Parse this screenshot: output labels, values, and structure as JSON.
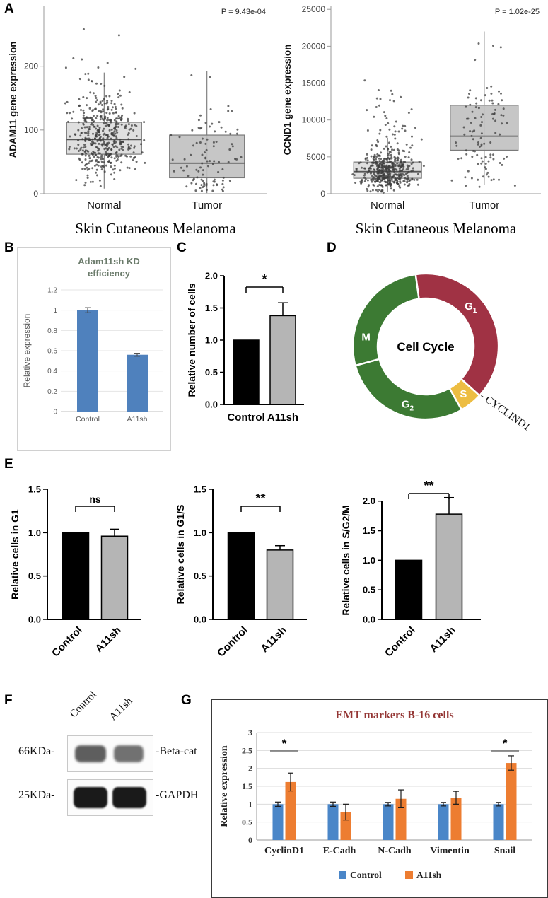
{
  "panel_letters": {
    "A": "A",
    "B": "B",
    "C": "C",
    "D": "D",
    "E": "E",
    "F": "F",
    "G": "G"
  },
  "chart_data": [
    {
      "panel": "A-left",
      "type": "boxplot",
      "ylabel": "ADAM11 gene expression",
      "xlabel": "Skin Cutaneous Melanoma",
      "pvalue": "P = 9.43e-04",
      "categories": [
        "Normal",
        "Tumor"
      ],
      "ylim": [
        0,
        295
      ],
      "yticks": [
        0,
        100,
        200
      ],
      "boxes": [
        {
          "group": "Normal",
          "q1": 62,
          "median": 85,
          "q3": 112,
          "whisker_low": 8,
          "whisker_high": 190,
          "point_min": 2,
          "point_max": 285,
          "n_points": 470
        },
        {
          "group": "Tumor",
          "q1": 25,
          "median": 48,
          "q3": 92,
          "whisker_low": 1,
          "whisker_high": 192,
          "point_min": 1,
          "point_max": 205,
          "n_points": 100
        }
      ]
    },
    {
      "panel": "A-right",
      "type": "boxplot",
      "ylabel": "CCND1 gene expression",
      "xlabel": "Skin Cutaneous Melanoma",
      "pvalue": "P = 1.02e-25",
      "categories": [
        "Normal",
        "Tumor"
      ],
      "ylim": [
        0,
        25500
      ],
      "yticks": [
        0,
        5000,
        10000,
        15000,
        20000,
        25000
      ],
      "boxes": [
        {
          "group": "Normal",
          "q1": 2100,
          "median": 3000,
          "q3": 4300,
          "whisker_low": 250,
          "whisker_high": 7600,
          "point_min": 150,
          "point_max": 17500,
          "n_points": 470
        },
        {
          "group": "Tumor",
          "q1": 5900,
          "median": 7800,
          "q3": 12000,
          "whisker_low": 1200,
          "whisker_high": 22000,
          "point_min": 900,
          "point_max": 22300,
          "n_points": 105
        }
      ]
    },
    {
      "panel": "B",
      "type": "bar",
      "title_lines": [
        "Adam11sh  KD",
        "efficiency"
      ],
      "title_color": "#6b7b6b",
      "ylabel": "Relative expression",
      "categories": [
        "Control",
        "A11sh"
      ],
      "values": [
        1.0,
        0.56
      ],
      "errors": [
        0.025,
        0.015
      ],
      "ylim": [
        0,
        1.2
      ],
      "yticks": [
        0,
        0.2,
        0.4,
        0.6,
        0.8,
        1,
        1.2
      ],
      "ytick_labels": [
        "0",
        "0.2",
        "0.4",
        "0.6",
        "0.8",
        "1",
        "1.2"
      ],
      "bar_color": "#4f81bd"
    },
    {
      "panel": "C",
      "type": "bar",
      "ylabel": "Relative number of cells",
      "categories": [
        "Control",
        "A11sh"
      ],
      "values": [
        1.0,
        1.38
      ],
      "errors": [
        0,
        0.2
      ],
      "ylim": [
        0,
        2.0
      ],
      "yticks": [
        0,
        0.5,
        1,
        1.5,
        2
      ],
      "ytick_labels": [
        "0.0",
        "0.5",
        "1.0",
        "1.5",
        "2.0"
      ],
      "bar_colors": [
        "#000000",
        "#b5b5b5"
      ],
      "significance": "*"
    },
    {
      "panel": "D",
      "type": "donut",
      "center_label": "Cell Cycle",
      "annotation": "- CYCLIND1",
      "segments": [
        {
          "label": "G1",
          "display": "G",
          "sub": "1",
          "value": 39,
          "color": "#a03244"
        },
        {
          "label": "S",
          "display": "S",
          "sub": "",
          "value": 5,
          "color": "#edbd42"
        },
        {
          "label": "G2",
          "display": "G",
          "sub": "2",
          "value": 29,
          "color": "#3c7a33"
        },
        {
          "label": "M",
          "display": "M",
          "sub": "",
          "value": 27,
          "color": "#3c7a33"
        }
      ]
    },
    {
      "panel": "E-1",
      "type": "bar",
      "ylabel": "Relative cells in G1",
      "categories": [
        "Control",
        "A11sh"
      ],
      "values": [
        1.0,
        0.96
      ],
      "errors": [
        0,
        0.08
      ],
      "ylim": [
        0,
        1.5
      ],
      "yticks": [
        0,
        0.5,
        1,
        1.5
      ],
      "ytick_labels": [
        "0.0",
        "0.5",
        "1.0",
        "1.5"
      ],
      "bar_colors": [
        "#000000",
        "#b5b5b5"
      ],
      "significance": "ns"
    },
    {
      "panel": "E-2",
      "type": "bar",
      "ylabel": "Relative cells in G1/S",
      "categories": [
        "Control",
        "A11sh"
      ],
      "values": [
        1.0,
        0.8
      ],
      "errors": [
        0,
        0.05
      ],
      "ylim": [
        0,
        1.5
      ],
      "yticks": [
        0,
        0.5,
        1,
        1.5
      ],
      "ytick_labels": [
        "0.0",
        "0.5",
        "1.0",
        "1.5"
      ],
      "bar_colors": [
        "#000000",
        "#b5b5b5"
      ],
      "significance": "**"
    },
    {
      "panel": "E-3",
      "type": "bar",
      "ylabel": "Relative cells in S/G2/M",
      "categories": [
        "Control",
        "A11sh"
      ],
      "values": [
        1.0,
        1.78
      ],
      "errors": [
        0,
        0.28
      ],
      "ylim": [
        0,
        2.2
      ],
      "yticks": [
        0,
        0.5,
        1,
        1.5,
        2
      ],
      "ytick_labels": [
        "0.0",
        "0.5",
        "1.0",
        "1.5",
        "2.0"
      ],
      "bar_colors": [
        "#000000",
        "#b5b5b5"
      ],
      "significance": "**"
    },
    {
      "panel": "F",
      "type": "western-blot",
      "lane_labels": [
        "Control",
        "A11sh"
      ],
      "rows": [
        {
          "left_label": "66KDa-",
          "right_label": "-Beta-cat",
          "band_intensity": [
            0.6,
            0.5
          ]
        },
        {
          "left_label": "25KDa-",
          "right_label": "-GAPDH",
          "band_intensity": [
            0.97,
            0.97
          ]
        }
      ]
    },
    {
      "panel": "G",
      "type": "grouped-bar",
      "title": "EMT markers B-16 cells",
      "title_color": "#943634",
      "ylabel": "Relative expression",
      "categories": [
        "CyclinD1",
        "E-Cadh",
        "N-Cadh",
        "Vimentin",
        "Snail"
      ],
      "series": [
        {
          "name": "Control",
          "color": "#4a86c8",
          "values": [
            1.0,
            1.0,
            1.0,
            1.0,
            1.0
          ],
          "errors": [
            0.06,
            0.06,
            0.05,
            0.05,
            0.05
          ]
        },
        {
          "name": "A11sh",
          "color": "#ed7d31",
          "values": [
            1.62,
            0.78,
            1.15,
            1.18,
            2.15
          ],
          "errors": [
            0.25,
            0.22,
            0.25,
            0.18,
            0.2
          ]
        }
      ],
      "ylim": [
        0,
        3
      ],
      "yticks": [
        0,
        0.5,
        1,
        1.5,
        2,
        2.5,
        3
      ],
      "ytick_labels": [
        "0",
        "0.5",
        "1",
        "1.5",
        "2",
        "2.5",
        "3"
      ],
      "significance": [
        {
          "category": "CyclinD1",
          "index": 0,
          "mark": "*"
        },
        {
          "category": "Snail",
          "index": 4,
          "mark": "*"
        }
      ]
    }
  ]
}
